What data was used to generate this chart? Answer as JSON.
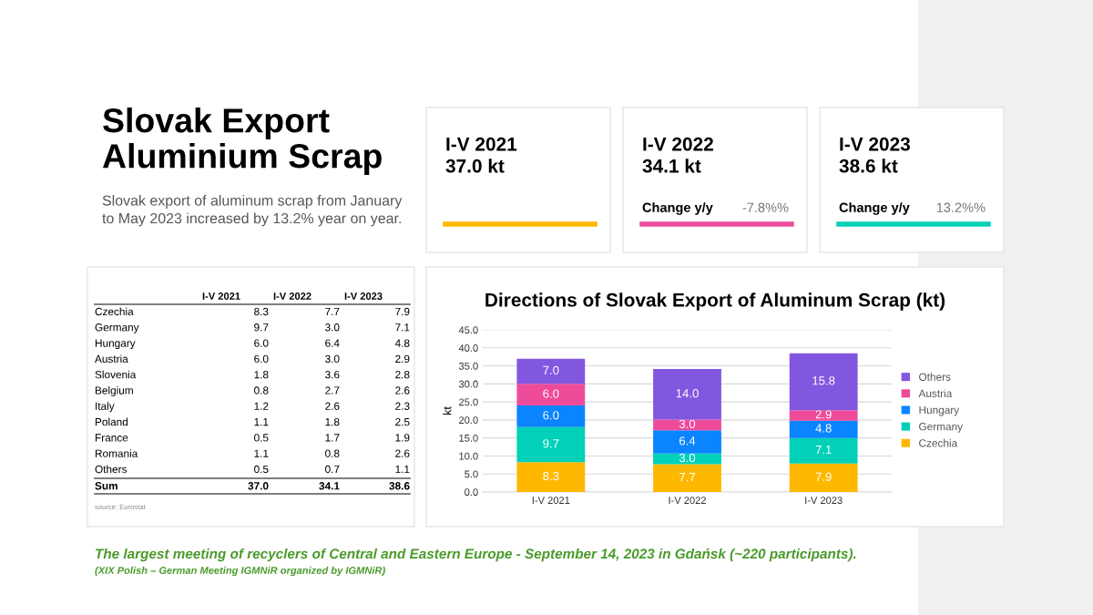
{
  "chart_data": [
    {
      "type": "other",
      "title": "Slovak Export\nAluminium Scrap",
      "subtitle": "Slovak export of aluminum scrap from January\nto May 2023 increased by 13.2% year on year.",
      "annotations": [
        "The largest meeting of recyclers of Central and Eastern Europe - September 14, 2023 in Gdańsk (~220 participants).",
        "(XIX Polish – German Meeting IGMNiR organized by IGMNiR)"
      ]
    },
    {
      "type": "other",
      "categories": [
        "I-V 2021",
        "I-V 2022",
        "I-V 2023"
      ],
      "colors": [
        "#ffb800",
        "#ee4b9b",
        "#00d1b8"
      ],
      "cell_labels": [
        [
          "37.0 kt",
          null,
          null
        ],
        [
          "34.1 kt",
          "Change y/y",
          "-7.8%%"
        ],
        [
          "38.6 kt",
          "Change y/y",
          "13.2%%"
        ]
      ]
    },
    {
      "type": "other",
      "categories": [
        "I-V 2021",
        "I-V 2022",
        "I-V 2023"
      ],
      "y_categories": [
        "Czechia",
        "Germany",
        "Hungary",
        "Austria",
        "Slovenia",
        "Belgium",
        "Italy",
        "Poland",
        "France",
        "Romania",
        "Others",
        "Sum"
      ],
      "cell_labels": [
        [
          "8.3",
          "7.7",
          "7.9"
        ],
        [
          "9.7",
          "3.0",
          "7.1"
        ],
        [
          "6.0",
          "6.4",
          "4.8"
        ],
        [
          "6.0",
          "3.0",
          "2.9"
        ],
        [
          "1.8",
          "3.6",
          "2.8"
        ],
        [
          "0.8",
          "2.7",
          "2.6"
        ],
        [
          "1.2",
          "2.6",
          "2.3"
        ],
        [
          "1.1",
          "1.8",
          "2.5"
        ],
        [
          "0.5",
          "1.7",
          "1.9"
        ],
        [
          "1.1",
          "0.8",
          "2.6"
        ],
        [
          "0.5",
          "0.7",
          "1.1"
        ],
        [
          "37.0",
          "34.1",
          "38.6"
        ]
      ],
      "annotations": [
        "source: Eurostat"
      ]
    },
    {
      "type": "bar",
      "title": "Directions of Slovak Export of Aluminum Scrap (kt)",
      "ylabel": "kt",
      "stacked": true,
      "legend": "right",
      "grid": "y",
      "categories": [
        "I-V 2021",
        "I-V 2022",
        "I-V 2023"
      ],
      "ylim": [
        0,
        45
      ],
      "yticks": [
        {
          "value": 0,
          "label": "0.0"
        },
        {
          "value": 5,
          "label": "5.0"
        },
        {
          "value": 10,
          "label": "10.0"
        },
        {
          "value": 15,
          "label": "15.0"
        },
        {
          "value": 20,
          "label": "20.0"
        },
        {
          "value": 25,
          "label": "25.0"
        },
        {
          "value": 30,
          "label": "30.0"
        },
        {
          "value": 35,
          "label": "35.0"
        },
        {
          "value": 40,
          "label": "40.0"
        },
        {
          "value": 45,
          "label": "45.0"
        }
      ],
      "series": [
        {
          "name": "Czechia",
          "color": "#ffb800",
          "values": [
            8.3,
            7.7,
            7.9
          ],
          "value_labels": [
            "8.3",
            "7.7",
            "7.9"
          ]
        },
        {
          "name": "Germany",
          "color": "#00d1b8",
          "values": [
            9.7,
            3.0,
            7.1
          ],
          "value_labels": [
            "9.7",
            "3.0",
            "7.1"
          ]
        },
        {
          "name": "Hungary",
          "color": "#0a84ff",
          "values": [
            6.0,
            6.4,
            4.8
          ],
          "value_labels": [
            "6.0",
            "6.4",
            "4.8"
          ]
        },
        {
          "name": "Austria",
          "color": "#ee4b9b",
          "values": [
            6.0,
            3.0,
            2.9
          ],
          "value_labels": [
            "6.0",
            "3.0",
            "2.9"
          ]
        },
        {
          "name": "Others",
          "color": "#8257e0",
          "values": [
            7.0,
            14.0,
            15.8
          ],
          "value_labels": [
            "7.0",
            "14.0",
            "15.8"
          ]
        }
      ]
    }
  ]
}
